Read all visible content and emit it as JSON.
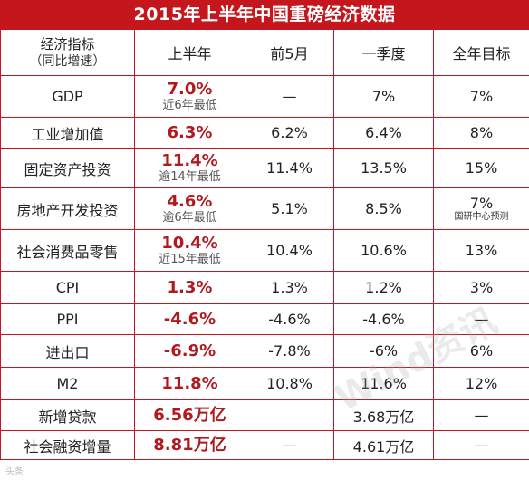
{
  "title": "2015年上半年中国重磅经济数据",
  "header": {
    "indicator": "经济指标",
    "indicator_sub": "（同比增速）",
    "h1": "上半年",
    "h2": "前5月",
    "h3": "一季度",
    "h4": "全年目标"
  },
  "rows": [
    {
      "name": "GDP",
      "h1": "7.0%",
      "h1_note": "近6年最低",
      "may": "—",
      "q1": "7%",
      "target": "7%",
      "target_note": ""
    },
    {
      "name": "工业增加值",
      "h1": "6.3%",
      "h1_note": "",
      "may": "6.2%",
      "q1": "6.4%",
      "target": "8%",
      "target_note": ""
    },
    {
      "name": "固定资产投资",
      "h1": "11.4%",
      "h1_note": "逾14年最低",
      "may": "11.4%",
      "q1": "13.5%",
      "target": "15%",
      "target_note": ""
    },
    {
      "name": "房地产开发投资",
      "h1": "4.6%",
      "h1_note": "逾6年最低",
      "may": "5.1%",
      "q1": "8.5%",
      "target": "7%",
      "target_note": "国研中心预测"
    },
    {
      "name": "社会消费品零售",
      "h1": "10.4%",
      "h1_note": "近15年最低",
      "may": "10.4%",
      "q1": "10.6%",
      "target": "13%",
      "target_note": ""
    },
    {
      "name": "CPI",
      "h1": "1.3%",
      "h1_note": "",
      "may": "1.3%",
      "q1": "1.2%",
      "target": "3%",
      "target_note": ""
    },
    {
      "name": "PPI",
      "h1": "-4.6%",
      "h1_note": "",
      "may": "-4.6%",
      "q1": "-4.6%",
      "target": "—",
      "target_note": ""
    },
    {
      "name": "进出口",
      "h1": "-6.9%",
      "h1_note": "",
      "may": "-7.8%",
      "q1": "-6%",
      "target": "6%",
      "target_note": ""
    },
    {
      "name": "M2",
      "h1": "11.8%",
      "h1_note": "",
      "may": "10.8%",
      "q1": "11.6%",
      "target": "12%",
      "target_note": ""
    },
    {
      "name": "新增贷款",
      "h1": "6.56万亿",
      "h1_note": "",
      "may": "",
      "q1": "3.68万亿",
      "target": "—",
      "target_note": ""
    },
    {
      "name": "社会融资增量",
      "h1": "8.81万亿",
      "h1_note": "",
      "may": "—",
      "q1": "4.61万亿",
      "target": "—",
      "target_note": ""
    }
  ],
  "watermark": "Wind资讯",
  "corner_mark": "头条"
}
